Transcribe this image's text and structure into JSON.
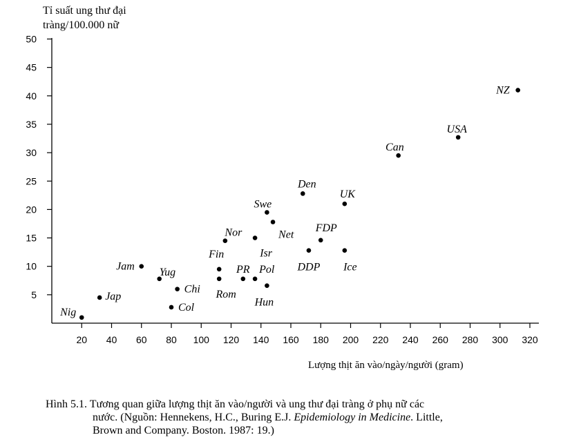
{
  "chart_data": {
    "type": "scatter",
    "ylabel": [
      "Tỉ suất ung thư đại",
      "tràng/100.000 nữ"
    ],
    "xlabel": "Lượng thịt ăn vào/ngày/người  (gram)",
    "xlim": [
      0,
      330
    ],
    "ylim": [
      0,
      50
    ],
    "xticks": [
      20,
      40,
      60,
      80,
      100,
      120,
      140,
      160,
      180,
      200,
      220,
      240,
      260,
      280,
      300,
      320
    ],
    "yticks": [
      5,
      10,
      15,
      20,
      25,
      30,
      35,
      40,
      45,
      50
    ],
    "points": [
      {
        "label": "Nig",
        "x": 20,
        "y": 1
      },
      {
        "label": "Jap",
        "x": 32,
        "y": 4.5
      },
      {
        "label": "Jam",
        "x": 60,
        "y": 10
      },
      {
        "label": "Yug",
        "x": 72,
        "y": 7.8
      },
      {
        "label": "Chi",
        "x": 84,
        "y": 6
      },
      {
        "label": "Col",
        "x": 80,
        "y": 2.8
      },
      {
        "label": "Fin",
        "x": 112,
        "y": 9.5
      },
      {
        "label": "Rom",
        "x": 112,
        "y": 7.8
      },
      {
        "label": "PR",
        "x": 128,
        "y": 7.8
      },
      {
        "label": "Pol",
        "x": 136,
        "y": 7.8
      },
      {
        "label": "Hun",
        "x": 144,
        "y": 6.6
      },
      {
        "label": "Nor",
        "x": 116,
        "y": 14.5
      },
      {
        "label": "Isr",
        "x": 136,
        "y": 15
      },
      {
        "label": "Swe",
        "x": 144,
        "y": 19.5
      },
      {
        "label": "Net",
        "x": 148,
        "y": 17.8
      },
      {
        "label": "Den",
        "x": 168,
        "y": 22.8
      },
      {
        "label": "DDP",
        "x": 172,
        "y": 12.8
      },
      {
        "label": "FDP",
        "x": 180,
        "y": 14.6
      },
      {
        "label": "UK",
        "x": 196,
        "y": 21
      },
      {
        "label": "Ice",
        "x": 196,
        "y": 12.8
      },
      {
        "label": "Can",
        "x": 232,
        "y": 29.5
      },
      {
        "label": "USA",
        "x": 272,
        "y": 32.7
      },
      {
        "label": "NZ",
        "x": 312,
        "y": 41
      }
    ]
  },
  "caption": {
    "line1": "Hình 5.1. Tương quan giữa lượng thịt ăn vào/người và ung thư đại tràng ở phụ nữ các",
    "line2_a": "nước. (Nguồn: Hennekens, H.C., Buring E.J. ",
    "line2_italic": "Epidemiology in Medicine",
    "line2_b": ". Little,",
    "line3": "Brown and Company. Boston. 1987: 19.)"
  }
}
